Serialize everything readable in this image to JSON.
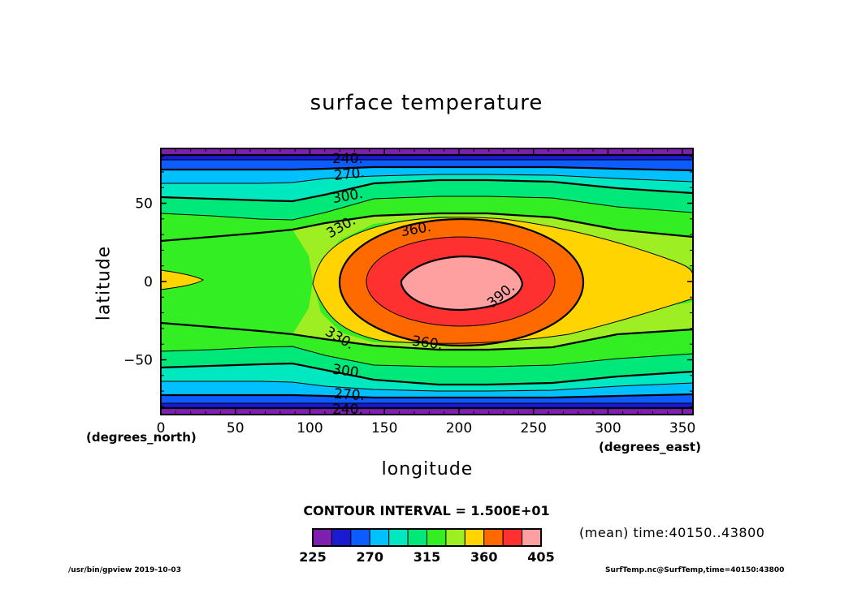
{
  "chart_data": {
    "type": "contour",
    "title": "surface temperature",
    "xlabel": "longitude",
    "ylabel": "latitude",
    "x_unit": "(degrees_east)",
    "y_unit": "(degrees_north)",
    "xlim": [
      0,
      357
    ],
    "ylim": [
      -85,
      85
    ],
    "x_ticks": [
      0,
      50,
      100,
      150,
      200,
      250,
      300,
      350
    ],
    "y_ticks": [
      -50,
      0,
      50
    ],
    "contour_interval_text": "CONTOUR INTERVAL = 1.500E+01",
    "levels": [
      225,
      240,
      255,
      270,
      285,
      300,
      315,
      330,
      345,
      360,
      375,
      390,
      405
    ],
    "contour_labels": [
      "240.",
      "270.",
      "300.",
      "330.",
      "360.",
      "390."
    ],
    "colorbar_tick_labels": [
      "225",
      "270",
      "315",
      "360",
      "405"
    ],
    "colorbar_colors": [
      "#7f1fb0",
      "#1a1ad0",
      "#0d5cff",
      "#00c0ff",
      "#00e8c0",
      "#00e87a",
      "#33ee22",
      "#9dee22",
      "#ffd400",
      "#ff6a00",
      "#ff3030",
      "#ffa0a0"
    ],
    "field_description_values": {
      "warm_center": {
        "lon": 200,
        "lat": 0,
        "value": 400
      },
      "cold_poles": {
        "lat": [
          -85,
          85
        ],
        "value": 230
      }
    }
  },
  "subtitle": "(mean) time:40150..43800",
  "footer_left": "/usr/bin/gpview   2019-10-03",
  "footer_right": "SurfTemp.nc@SurfTemp,time=40150:43800"
}
